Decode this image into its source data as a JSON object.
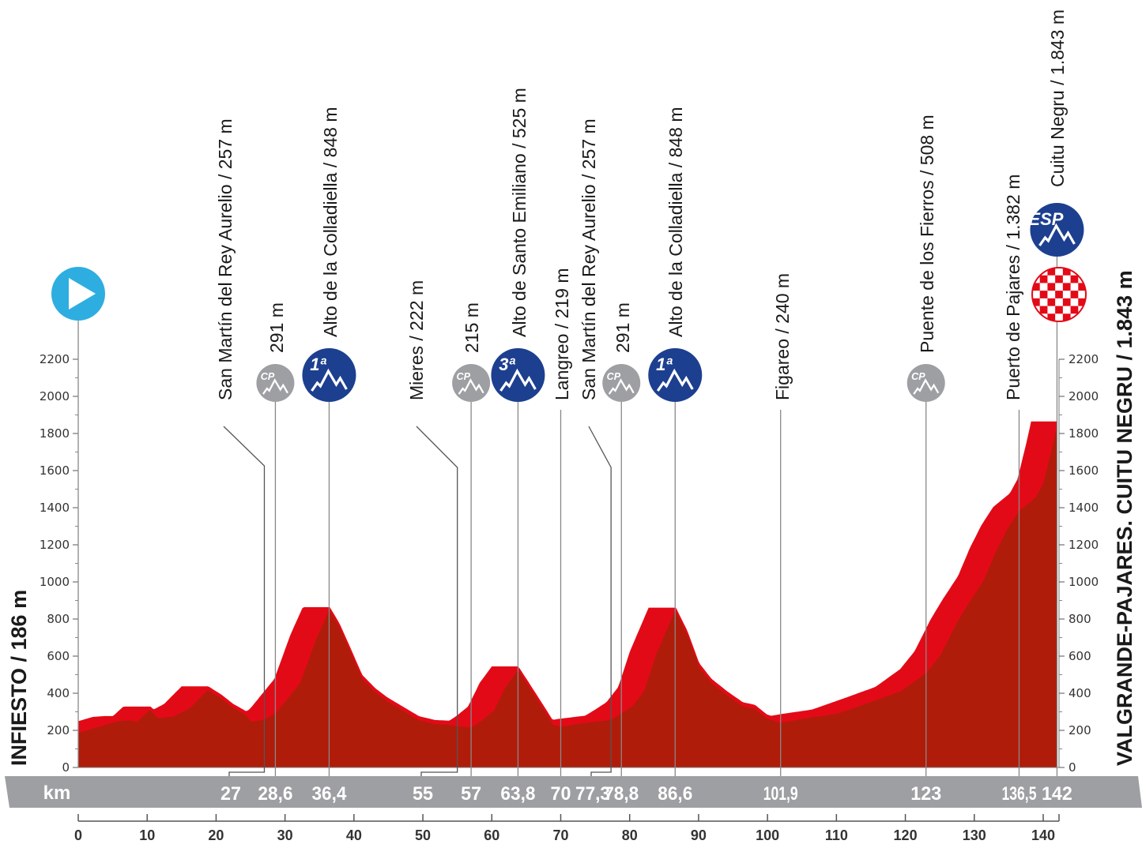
{
  "chart_data": {
    "type": "area",
    "title": "",
    "xlabel": "km",
    "ylabel": "",
    "xlim": [
      0,
      142
    ],
    "ylim": [
      0,
      2200
    ],
    "x_ticks": [
      0,
      10,
      20,
      30,
      40,
      50,
      60,
      70,
      80,
      90,
      100,
      110,
      120,
      130,
      140
    ],
    "y_ticks": [
      0,
      200,
      400,
      600,
      800,
      1000,
      1200,
      1400,
      1600,
      1800,
      2000,
      2200
    ],
    "grid": false,
    "colors": {
      "profile": "#b01c0a",
      "profile_top": "#e30a17",
      "km_band": "#9d9fa2",
      "cat_blue": "#1d3f8f",
      "cp_gray": "#9d9fa2",
      "start": "#2eaee0"
    },
    "start_label": "INFIESTO / 186 m",
    "finish_label": "VALGRANDE-PAJARES. CUITU NEGRU / 1.843 m",
    "km_band_title": "km",
    "profile": {
      "x": [
        0,
        5.8,
        7.5,
        8.5,
        10.4,
        11.6,
        13.9,
        16.2,
        18.8,
        20.8,
        22.5,
        24.2,
        25.1,
        27,
        28.6,
        29.9,
        32.2,
        34.5,
        36.4,
        37.9,
        39.7,
        41.2,
        43.1,
        44.8,
        47.1,
        49.4,
        51.7,
        53.8,
        55,
        57,
        58.6,
        60.3,
        62,
        63.8,
        65.3,
        67.2,
        68.9,
        70,
        73.5,
        77.3,
        78.8,
        80.4,
        82.1,
        83.8,
        86.6,
        88.4,
        90.1,
        91.9,
        94.1,
        96.4,
        98.2,
        99.9,
        101.9,
        105.6,
        110.2,
        114.8,
        119.4,
        123,
        125.1,
        127.4,
        129.1,
        131.4,
        133.1,
        134.8,
        136.5,
        138.9,
        140,
        141.2,
        142
      ],
      "y": [
        186,
        250,
        255,
        245,
        310,
        265,
        275,
        320,
        417,
        370,
        320,
        285,
        247,
        257,
        291,
        350,
        455,
        690,
        848,
        755,
        605,
        477,
        405,
        357,
        306,
        255,
        234,
        230,
        222,
        215,
        255,
        306,
        434,
        525,
        440,
        330,
        230,
        219,
        240,
        257,
        291,
        330,
        412,
        605,
        848,
        712,
        540,
        455,
        390,
        330,
        315,
        264,
        240,
        265,
        290,
        350,
        412,
        508,
        605,
        775,
        880,
        1010,
        1160,
        1285,
        1382,
        1455,
        1530,
        1710,
        1843
      ]
    },
    "points": [
      {
        "km": 27,
        "km_label": "27",
        "label": "San Martín del Rey Aurelio / 257 m",
        "icon": ""
      },
      {
        "km": 28.6,
        "km_label": "28,6",
        "label": "291 m",
        "icon": "CP"
      },
      {
        "km": 36.4,
        "km_label": "36,4",
        "label": "Alto de la Colladiella / 848 m",
        "icon": "1ª"
      },
      {
        "km": 55,
        "km_label": "55",
        "label": "Mieres / 222 m",
        "icon": ""
      },
      {
        "km": 57,
        "km_label": "57",
        "label": "215 m",
        "icon": "CP"
      },
      {
        "km": 63.8,
        "km_label": "63,8",
        "label": "Alto de Santo Emiliano / 525 m",
        "icon": "3ª"
      },
      {
        "km": 70,
        "km_label": "70",
        "label": "Langreo / 219 m",
        "icon": ""
      },
      {
        "km": 77.3,
        "km_label": "77,3",
        "label": "San Martín del Rey Aurelio / 257 m",
        "icon": ""
      },
      {
        "km": 78.8,
        "km_label": "78,8",
        "label": "291 m",
        "icon": "CP"
      },
      {
        "km": 86.6,
        "km_label": "86,6",
        "label": "Alto de la Colladiella / 848 m",
        "icon": "1ª"
      },
      {
        "km": 101.9,
        "km_label": "101,9",
        "label": "Figareo / 240 m",
        "icon": ""
      },
      {
        "km": 123,
        "km_label": "123",
        "label": "Puente de los Fierros / 508 m",
        "icon": "CP"
      },
      {
        "km": 136.5,
        "km_label": "136,5",
        "label": "Puerto de Pajares / 1.382 m",
        "icon": ""
      },
      {
        "km": 142,
        "km_label": "142",
        "label": "Cuitu Negru / 1.843 m",
        "icon": "ESP"
      }
    ],
    "icons": {
      "start": "start-play-icon",
      "finish": "finish-checkered-flag-icon",
      "climb": "mountain-icon"
    }
  }
}
